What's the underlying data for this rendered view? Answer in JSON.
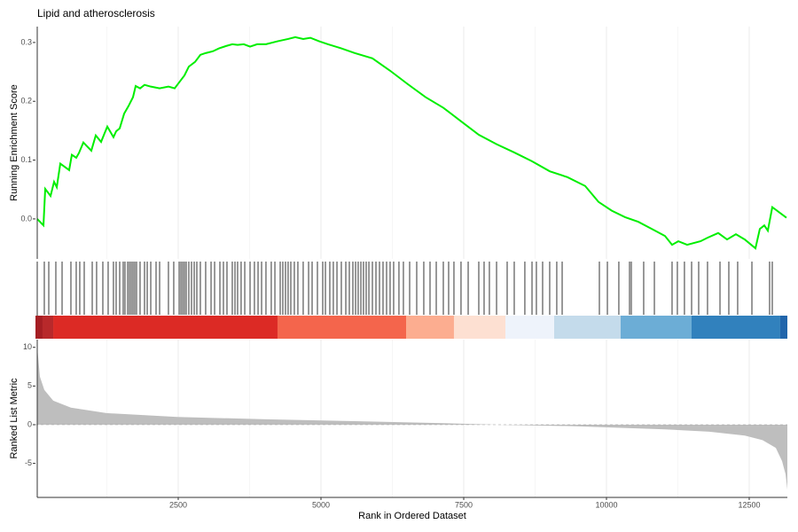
{
  "chart_data": {
    "type": "gsea",
    "title": "Lipid and atherosclerosis",
    "xlabel": "Rank in Ordered Dataset",
    "xlim": [
      0,
      13168
    ],
    "xticks": [
      2500,
      5000,
      7500,
      10000,
      12500
    ],
    "es": {
      "ylabel": "Running Enrichment Score",
      "ylim": [
        -0.068,
        0.327
      ],
      "yticks": [
        {
          "value": 0,
          "label": "0.0"
        },
        0.1,
        0.2,
        0.3
      ],
      "color": "#00ee00",
      "x": [
        31,
        140,
        171,
        264,
        326,
        373,
        435,
        590,
        637,
        714,
        761,
        839,
        978,
        1056,
        1149,
        1258,
        1366,
        1413,
        1475,
        1553,
        1630,
        1708,
        1755,
        1832,
        1910,
        2019,
        2174,
        2329,
        2438,
        2531,
        2609,
        2686,
        2795,
        2888,
        2981,
        3106,
        3214,
        3339,
        3447,
        3540,
        3649,
        3758,
        3882,
        4037,
        4239,
        4425,
        4550,
        4689,
        4814,
        4969,
        5124,
        5357,
        5590,
        5901,
        6211,
        6522,
        6832,
        7143,
        7453,
        7764,
        8075,
        8385,
        8696,
        9006,
        9317,
        9627,
        9860,
        10093,
        10326,
        10559,
        10792,
        11025,
        11149,
        11258,
        11413,
        11646,
        11770,
        11957,
        12112,
        12267,
        12422,
        12609,
        12686,
        12764,
        12826,
        12904,
        13152
      ],
      "values": [
        0,
        -0.011,
        0.051,
        0.039,
        0.063,
        0.054,
        0.094,
        0.083,
        0.109,
        0.104,
        0.112,
        0.13,
        0.116,
        0.142,
        0.131,
        0.157,
        0.139,
        0.149,
        0.154,
        0.179,
        0.192,
        0.207,
        0.226,
        0.222,
        0.228,
        0.225,
        0.222,
        0.225,
        0.222,
        0.234,
        0.244,
        0.259,
        0.267,
        0.279,
        0.282,
        0.285,
        0.29,
        0.294,
        0.297,
        0.296,
        0.297,
        0.293,
        0.297,
        0.297,
        0.302,
        0.306,
        0.309,
        0.306,
        0.308,
        0.302,
        0.297,
        0.29,
        0.282,
        0.273,
        0.252,
        0.229,
        0.207,
        0.189,
        0.166,
        0.143,
        0.127,
        0.113,
        0.098,
        0.081,
        0.071,
        0.056,
        0.029,
        0.014,
        0.003,
        -0.005,
        -0.017,
        -0.029,
        -0.044,
        -0.038,
        -0.044,
        -0.038,
        -0.032,
        -0.024,
        -0.035,
        -0.026,
        -0.035,
        -0.05,
        -0.017,
        -0.011,
        -0.02,
        0.02,
        0.002
      ]
    },
    "hits": {
      "color": "#000000",
      "x": [
        155,
        233,
        357,
        466,
        621,
        714,
        776,
        854,
        994,
        1071,
        1180,
        1273,
        1366,
        1413,
        1475,
        1537,
        1568,
        1615,
        1646,
        1677,
        1708,
        1739,
        1770,
        1832,
        1910,
        1957,
        2019,
        2112,
        2174,
        2329,
        2422,
        2516,
        2547,
        2578,
        2609,
        2640,
        2686,
        2733,
        2780,
        2826,
        2888,
        2981,
        3075,
        3137,
        3230,
        3292,
        3354,
        3447,
        3494,
        3540,
        3602,
        3665,
        3758,
        3835,
        3898,
        3960,
        4037,
        4130,
        4193,
        4286,
        4332,
        4379,
        4425,
        4472,
        4534,
        4596,
        4689,
        4783,
        4845,
        4938,
        5031,
        5078,
        5155,
        5217,
        5280,
        5357,
        5435,
        5497,
        5559,
        5606,
        5652,
        5699,
        5745,
        5792,
        5839,
        5901,
        5963,
        6025,
        6087,
        6149,
        6211,
        6273,
        6366,
        6444,
        6553,
        6677,
        6801,
        6910,
        7019,
        7143,
        7236,
        7329,
        7453,
        7578,
        7764,
        7857,
        7950,
        8075,
        8261,
        8385,
        8571,
        8696,
        8773,
        8882,
        9006,
        9130,
        9224,
        9876,
        10016,
        10217,
        10404,
        10435,
        10652,
        10839,
        11149,
        11242,
        11366,
        11491,
        11615,
        11770,
        11988,
        12143,
        12298,
        12547,
        12857,
        12904
      ]
    },
    "band": {
      "x": [
        0,
        124,
        311,
        4239,
        6491,
        7329,
        8230,
        9084,
        10248,
        11491,
        13043,
        13168
      ],
      "colors": [
        "#a51e23",
        "#b8292b",
        "#dc2a25",
        "#f4654c",
        "#fcad90",
        "#fde0d2",
        "#eef3fb",
        "#c4dbeb",
        "#6cadd6",
        "#3181bd",
        "#2165ab"
      ]
    },
    "metric": {
      "ylabel": "Ranked List Metric",
      "ylim": [
        -9.4,
        11
      ],
      "yticks": [
        -5,
        0,
        5,
        10
      ],
      "color": "#bebebe",
      "x": [
        31,
        78,
        155,
        311,
        621,
        1242,
        2484,
        4037,
        5590,
        7143,
        8075,
        9472,
        11025,
        11801,
        12422,
        12733,
        12966,
        13075,
        13137,
        13168
      ],
      "values": [
        10,
        6.2,
        4.5,
        3.1,
        2.2,
        1.5,
        1,
        0.7,
        0.45,
        0.2,
        0,
        -0.2,
        -0.6,
        -0.9,
        -1.4,
        -2,
        -3,
        -4.7,
        -6.4,
        -8.4
      ]
    }
  }
}
